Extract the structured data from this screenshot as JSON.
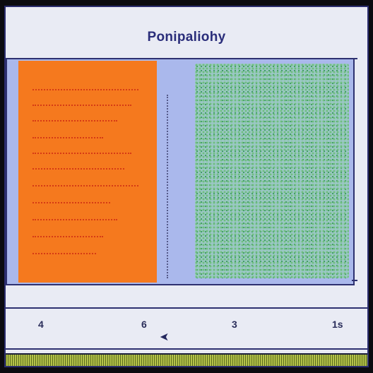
{
  "title": "Ponipaliohy",
  "axis": {
    "ticks": [
      "4",
      "6",
      "3",
      "1s"
    ],
    "pointer_icon": "arrow-left-icon"
  },
  "colors": {
    "orange_block": "#f5791e",
    "green_block": "#6fbf7f",
    "panel_background": "#aab8ec",
    "frame_border": "#2a2c6e"
  }
}
